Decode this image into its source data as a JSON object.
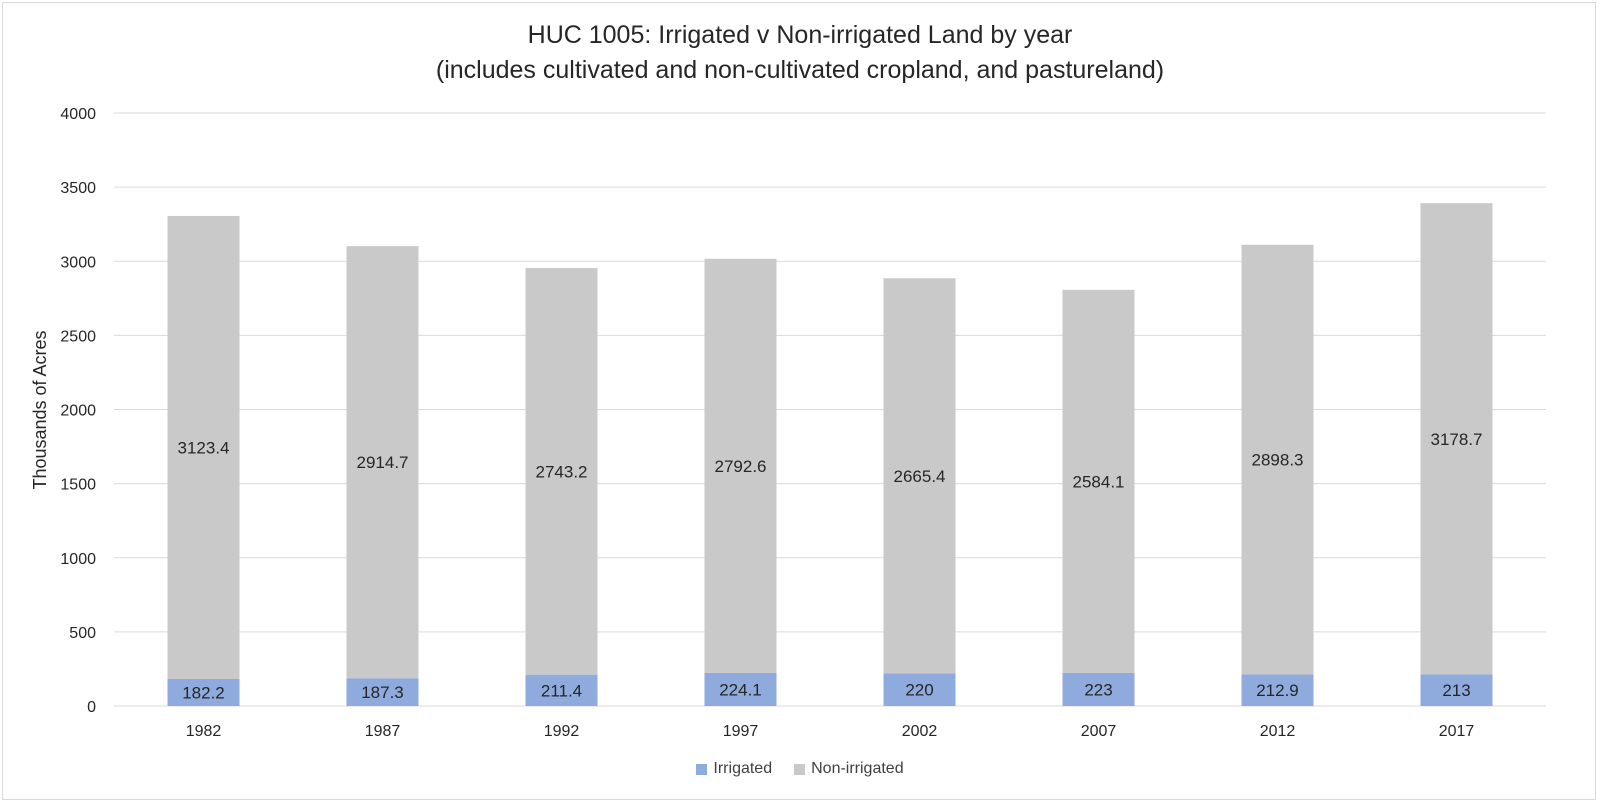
{
  "chart_data": {
    "type": "bar",
    "stacked": true,
    "title": "HUC 1005: Irrigated v Non-irrigated Land by year",
    "subtitle": "(includes cultivated and non-cultivated cropland, and pastureland)",
    "xlabel": "",
    "ylabel": "Thousands of Acres",
    "ylim": [
      0,
      4000
    ],
    "yticks": [
      0,
      500,
      1000,
      1500,
      2000,
      2500,
      3000,
      3500,
      4000
    ],
    "categories": [
      "1982",
      "1987",
      "1992",
      "1997",
      "2002",
      "2007",
      "2012",
      "2017"
    ],
    "series": [
      {
        "name": "Irrigated",
        "color": "#8faadc",
        "values": [
          182.2,
          187.3,
          211.4,
          224.1,
          220,
          223,
          212.9,
          213
        ]
      },
      {
        "name": "Non-irrigated",
        "color": "#c9c9c9",
        "values": [
          3123.4,
          2914.7,
          2743.2,
          2792.6,
          2665.4,
          2584.1,
          2898.3,
          3178.7
        ]
      }
    ],
    "grid": true,
    "legend_position": "bottom"
  }
}
